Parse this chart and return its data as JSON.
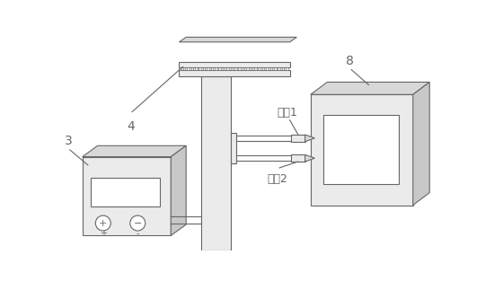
{
  "line_color": "#666666",
  "fill_light": "#ebebeb",
  "fill_mid": "#d8d8d8",
  "fill_dark": "#c8c8c8",
  "white": "#ffffff",
  "label_3": "3",
  "label_4": "4",
  "label_8": "8",
  "label_channel1": "通道1",
  "label_channel2": "通道2",
  "label_plus": "+",
  "label_minus": "-",
  "font_size_label": 10,
  "font_size_text": 9,
  "lw": 0.8
}
